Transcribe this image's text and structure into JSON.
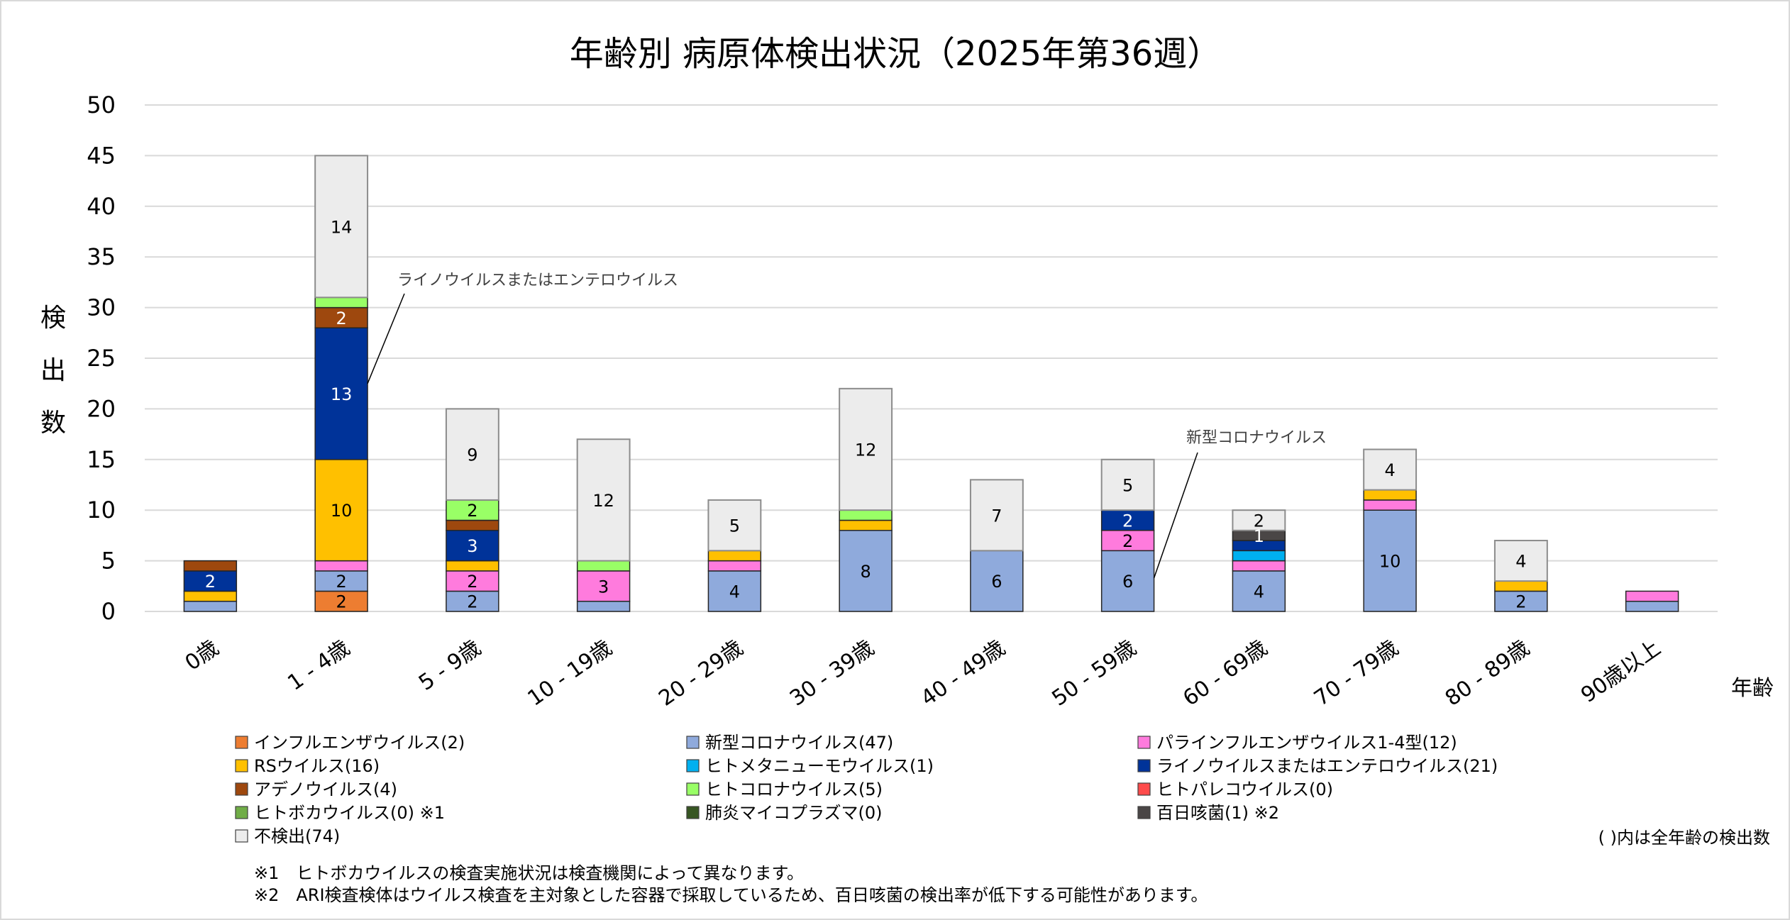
{
  "chart_data": {
    "type": "bar",
    "stacked": true,
    "title": "年齢別 病原体検出状況（2025年第36週）",
    "xlabel": "年齢",
    "ylabel": "検出数",
    "ylim": [
      0,
      50
    ],
    "yticks": [
      0,
      5,
      10,
      15,
      20,
      25,
      30,
      35,
      40,
      45,
      50
    ],
    "grid": true,
    "categories": [
      "0歳",
      "1 - 4歳",
      "5 - 9歳",
      "10 - 19歳",
      "20 - 29歳",
      "30 - 39歳",
      "40 - 49歳",
      "50 - 59歳",
      "60 - 69歳",
      "70 - 79歳",
      "80 - 89歳",
      "90歳以上"
    ],
    "series": [
      {
        "name": "インフルエンザウイルス",
        "legend": "インフルエンザウイルス(2)",
        "color": "#ED7D31",
        "label_color": "#000000",
        "values": [
          0,
          2,
          0,
          0,
          0,
          0,
          0,
          0,
          0,
          0,
          0,
          0
        ],
        "labels": [
          null,
          "2",
          null,
          null,
          null,
          null,
          null,
          null,
          null,
          null,
          null,
          null
        ]
      },
      {
        "name": "新型コロナウイルス",
        "legend": "新型コロナウイルス(47)",
        "color": "#8FAADC",
        "label_color": "#000000",
        "values": [
          1,
          2,
          2,
          1,
          4,
          8,
          6,
          6,
          4,
          10,
          2,
          1
        ],
        "labels": [
          null,
          "2",
          "2",
          null,
          "4",
          "8",
          "6",
          "6",
          "4",
          "10",
          "2",
          null
        ]
      },
      {
        "name": "パラインフルエンザウイルス1-4型",
        "legend": "パラインフルエンザウイルス1-4型(12)",
        "color": "#FF7BDD",
        "label_color": "#000000",
        "values": [
          0,
          1,
          2,
          3,
          1,
          0,
          0,
          2,
          1,
          1,
          0,
          1
        ],
        "labels": [
          null,
          null,
          "2",
          "3",
          null,
          null,
          null,
          "2",
          null,
          null,
          null,
          null
        ]
      },
      {
        "name": "RSウイルス",
        "legend": "RSウイルス(16)",
        "color": "#FFC000",
        "label_color": "#000000",
        "values": [
          1,
          10,
          1,
          0,
          1,
          1,
          0,
          0,
          0,
          1,
          1,
          0
        ],
        "labels": [
          null,
          "10",
          null,
          null,
          null,
          null,
          null,
          null,
          null,
          null,
          null,
          null
        ]
      },
      {
        "name": "ヒトメタニューモウイルス",
        "legend": "ヒトメタニューモウイルス(1)",
        "color": "#00B0F0",
        "label_color": "#000000",
        "values": [
          0,
          0,
          0,
          0,
          0,
          0,
          0,
          0,
          1,
          0,
          0,
          0
        ],
        "labels": [
          null,
          null,
          null,
          null,
          null,
          null,
          null,
          null,
          null,
          null,
          null,
          null
        ]
      },
      {
        "name": "ライノウイルスまたはエンテロウイルス",
        "legend": "ライノウイルスまたはエンテロウイルス(21)",
        "color": "#003399",
        "label_color": "#FFFFFF",
        "values": [
          2,
          13,
          3,
          0,
          0,
          0,
          0,
          2,
          1,
          0,
          0,
          0
        ],
        "labels": [
          "2",
          "13",
          "3",
          null,
          null,
          null,
          null,
          "2",
          null,
          null,
          null,
          null
        ]
      },
      {
        "name": "アデノウイルス",
        "legend": "アデノウイルス(4)",
        "color": "#9E480E",
        "label_color": "#FFFFFF",
        "values": [
          1,
          2,
          1,
          0,
          0,
          0,
          0,
          0,
          0,
          0,
          0,
          0
        ],
        "labels": [
          null,
          "2",
          null,
          null,
          null,
          null,
          null,
          null,
          null,
          null,
          null,
          null
        ]
      },
      {
        "name": "ヒトコロナウイルス",
        "legend": "ヒトコロナウイルス(5)",
        "color": "#99FF66",
        "label_color": "#000000",
        "values": [
          0,
          1,
          2,
          1,
          0,
          1,
          0,
          0,
          0,
          0,
          0,
          0
        ],
        "labels": [
          null,
          null,
          "2",
          null,
          null,
          null,
          null,
          null,
          null,
          null,
          null,
          null
        ]
      },
      {
        "name": "ヒトパレコウイルス",
        "legend": "ヒトパレコウイルス(0)",
        "color": "#FF4B4B",
        "label_color": "#000000",
        "values": [
          0,
          0,
          0,
          0,
          0,
          0,
          0,
          0,
          0,
          0,
          0,
          0
        ],
        "labels": [
          null,
          null,
          null,
          null,
          null,
          null,
          null,
          null,
          null,
          null,
          null,
          null
        ]
      },
      {
        "name": "ヒトボカウイルス",
        "legend": "ヒトボカウイルス(0) ※1",
        "color": "#70AD47",
        "label_color": "#000000",
        "values": [
          0,
          0,
          0,
          0,
          0,
          0,
          0,
          0,
          0,
          0,
          0,
          0
        ],
        "labels": [
          null,
          null,
          null,
          null,
          null,
          null,
          null,
          null,
          null,
          null,
          null,
          null
        ]
      },
      {
        "name": "肺炎マイコプラズマ",
        "legend": "肺炎マイコプラズマ(0)",
        "color": "#375623",
        "label_color": "#FFFFFF",
        "values": [
          0,
          0,
          0,
          0,
          0,
          0,
          0,
          0,
          0,
          0,
          0,
          0
        ],
        "labels": [
          null,
          null,
          null,
          null,
          null,
          null,
          null,
          null,
          null,
          null,
          null,
          null
        ]
      },
      {
        "name": "百日咳菌",
        "legend": "百日咳菌(1) ※2",
        "color": "#4A4646",
        "label_color": "#FFFFFF",
        "values": [
          0,
          0,
          0,
          0,
          0,
          0,
          0,
          0,
          1,
          0,
          0,
          0
        ],
        "labels": [
          null,
          null,
          null,
          null,
          null,
          null,
          null,
          null,
          "1",
          null,
          null,
          null
        ]
      },
      {
        "name": "不検出",
        "legend": "不検出(74)",
        "color": "#ECECEC",
        "label_color": "#000000",
        "values": [
          0,
          14,
          9,
          12,
          5,
          12,
          7,
          5,
          2,
          4,
          4,
          0
        ],
        "labels": [
          null,
          "14",
          "9",
          "12",
          "5",
          "12",
          "7",
          "5",
          "2",
          "4",
          "4",
          null
        ]
      }
    ],
    "legend_order": [
      [
        "インフルエンザウイルス",
        "新型コロナウイルス",
        "パラインフルエンザウイルス1-4型"
      ],
      [
        "RSウイルス",
        "ヒトメタニューモウイルス",
        "ライノウイルスまたはエンテロウイルス"
      ],
      [
        "アデノウイルス",
        "ヒトコロナウイルス",
        "ヒトパレコウイルス"
      ],
      [
        "ヒトボカウイルス",
        "肺炎マイコプラズマ",
        "百日咳菌"
      ],
      [
        "不検出"
      ]
    ],
    "legend_placement": "bottom",
    "annotations": [
      {
        "text": "ライノウイルスまたはエンテロウイルス",
        "target_category": "1 - 4歳",
        "target_series": "ライノウイルスまたはエンテロウイルス"
      },
      {
        "text": "新型コロナウイルス",
        "target_category": "50 - 59歳",
        "target_series": "新型コロナウイルス"
      }
    ]
  },
  "legend_note": "( )内は全年齢の検出数",
  "notes": [
    "※1　ヒトボカウイルスの検査実施状況は検査機関によって異なります。",
    "※2　ARI検査検体はウイルス検査を主対象とした容器で採取しているため、百日咳菌の検出率が低下する可能性があります。"
  ]
}
